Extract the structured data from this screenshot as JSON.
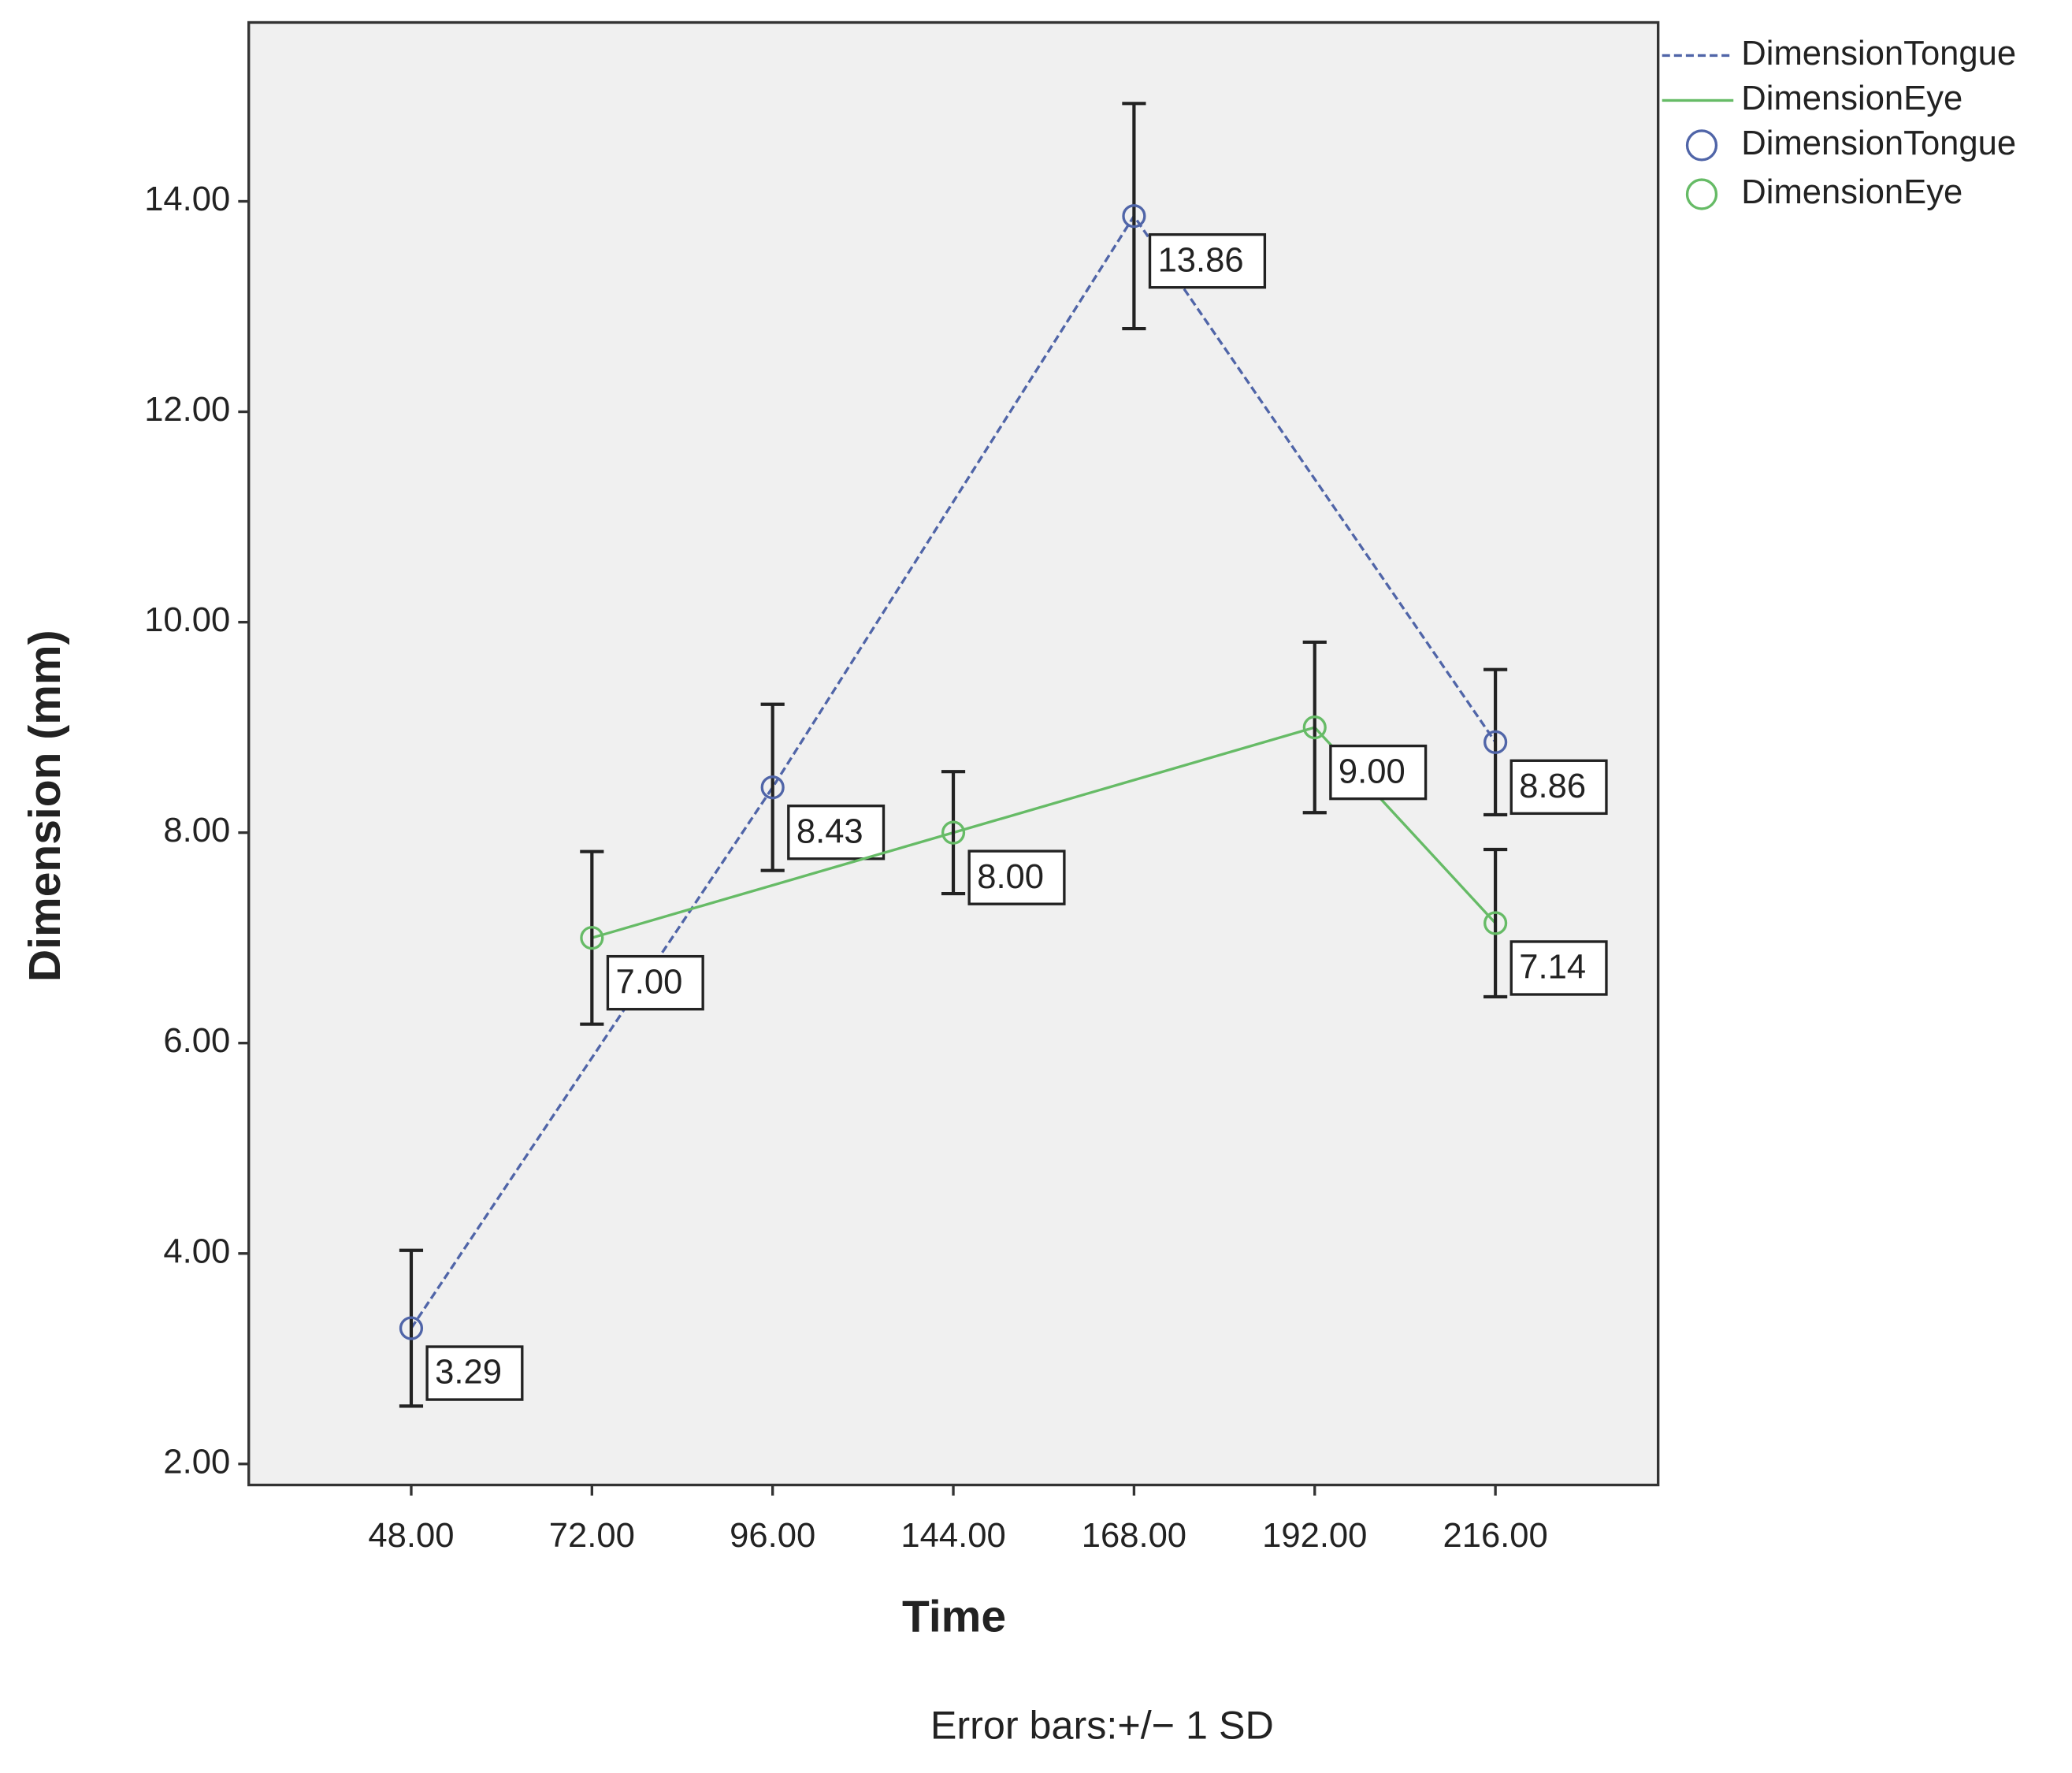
{
  "chart_data": {
    "type": "line",
    "x_label": "Time",
    "y_label": "Dimension (mm)",
    "footnote": "Error bars:+/− 1 SD",
    "categories": [
      "48.00",
      "72.00",
      "96.00",
      "144.00",
      "168.00",
      "192.00",
      "216.00"
    ],
    "ylim": [
      1.8,
      15.7
    ],
    "yticks": [
      {
        "value": 2,
        "label": "2.00"
      },
      {
        "value": 4,
        "label": "4.00"
      },
      {
        "value": 6,
        "label": "6.00"
      },
      {
        "value": 8,
        "label": "8.00"
      },
      {
        "value": 10,
        "label": "10.00"
      },
      {
        "value": 12,
        "label": "12.00"
      },
      {
        "value": 14,
        "label": "14.00"
      }
    ],
    "series": [
      {
        "name": "DimensionTongue",
        "color": "#5065a8",
        "dashed": true,
        "x": [
          "48.00",
          "96.00",
          "168.00",
          "216.00"
        ],
        "values": [
          3.29,
          8.43,
          13.86,
          8.86
        ],
        "value_labels": [
          "3.29",
          "8.43",
          "13.86",
          "8.86"
        ],
        "errors": [
          0.74,
          0.79,
          1.07,
          0.69
        ]
      },
      {
        "name": "DimensionEye",
        "color": "#66bb66",
        "dashed": false,
        "x": [
          "72.00",
          "144.00",
          "192.00",
          "216.00"
        ],
        "values": [
          7,
          8,
          9,
          7.14
        ],
        "value_labels": [
          "7.00",
          "8.00",
          "9.00",
          "7.14"
        ],
        "errors": [
          0.82,
          0.58,
          0.81,
          0.7
        ]
      }
    ]
  }
}
